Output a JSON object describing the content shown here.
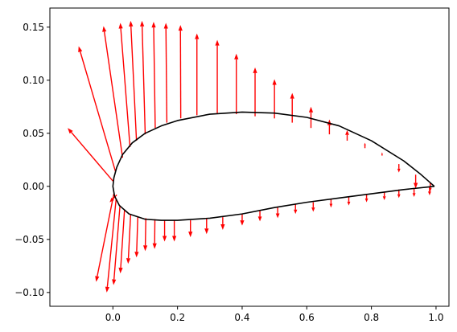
{
  "chart_data": {
    "type": "quiver",
    "title": "",
    "xlabel": "",
    "ylabel": "",
    "xlim": [
      -0.195,
      1.04
    ],
    "ylim": [
      -0.113,
      0.168
    ],
    "grid": false,
    "legend": null,
    "x_ticks": [
      0.0,
      0.2,
      0.4,
      0.6,
      0.8,
      1.0
    ],
    "x_tick_labels": [
      "0.0",
      "0.2",
      "0.4",
      "0.6",
      "0.8",
      "1.0"
    ],
    "y_ticks": [
      -0.1,
      -0.05,
      0.0,
      0.05,
      0.1,
      0.15
    ],
    "y_tick_labels": [
      "−0.10",
      "−0.05",
      "0.00",
      "0.05",
      "0.10",
      "0.15"
    ],
    "colors": {
      "airfoil": "#000000",
      "arrows": "#ff0000",
      "axes": "#000000"
    },
    "airfoil_upper": [
      [
        0.995,
        0.0
      ],
      [
        0.95,
        0.012
      ],
      [
        0.9,
        0.024
      ],
      [
        0.8,
        0.043
      ],
      [
        0.7,
        0.057
      ],
      [
        0.6,
        0.065
      ],
      [
        0.5,
        0.069
      ],
      [
        0.4,
        0.07
      ],
      [
        0.3,
        0.068
      ],
      [
        0.2,
        0.062
      ],
      [
        0.15,
        0.057
      ],
      [
        0.1,
        0.05
      ],
      [
        0.06,
        0.041
      ],
      [
        0.03,
        0.03
      ],
      [
        0.012,
        0.018
      ],
      [
        0.003,
        0.008
      ],
      [
        0.0,
        0.0
      ]
    ],
    "airfoil_lower": [
      [
        0.0,
        0.0
      ],
      [
        0.005,
        -0.009
      ],
      [
        0.02,
        -0.018
      ],
      [
        0.05,
        -0.026
      ],
      [
        0.1,
        -0.031
      ],
      [
        0.15,
        -0.032
      ],
      [
        0.2,
        -0.032
      ],
      [
        0.3,
        -0.03
      ],
      [
        0.4,
        -0.026
      ],
      [
        0.5,
        -0.02
      ],
      [
        0.6,
        -0.015
      ],
      [
        0.7,
        -0.011
      ],
      [
        0.8,
        -0.007
      ],
      [
        0.9,
        -0.003
      ],
      [
        0.995,
        0.0
      ]
    ],
    "arrows_upper": [
      {
        "x": 0.0,
        "y": 0.005,
        "u": -0.14,
        "v": 0.05
      },
      {
        "x": 0.008,
        "y": 0.014,
        "u": -0.114,
        "v": 0.118
      },
      {
        "x": 0.03,
        "y": 0.027,
        "u": -0.059,
        "v": 0.124
      },
      {
        "x": 0.053,
        "y": 0.037,
        "u": -0.03,
        "v": 0.117
      },
      {
        "x": 0.073,
        "y": 0.043,
        "u": -0.018,
        "v": 0.113
      },
      {
        "x": 0.1,
        "y": 0.049,
        "u": -0.01,
        "v": 0.107
      },
      {
        "x": 0.131,
        "y": 0.055,
        "u": -0.005,
        "v": 0.1
      },
      {
        "x": 0.167,
        "y": 0.06,
        "u": -0.003,
        "v": 0.094
      },
      {
        "x": 0.21,
        "y": 0.064,
        "u": -0.001,
        "v": 0.088
      },
      {
        "x": 0.26,
        "y": 0.067,
        "u": 0.0,
        "v": 0.077
      },
      {
        "x": 0.323,
        "y": 0.069,
        "u": 0.0,
        "v": 0.069
      },
      {
        "x": 0.382,
        "y": 0.068,
        "u": 0.0,
        "v": 0.057
      },
      {
        "x": 0.44,
        "y": 0.066,
        "u": 0.0,
        "v": 0.046
      },
      {
        "x": 0.5,
        "y": 0.064,
        "u": 0.0,
        "v": 0.037
      },
      {
        "x": 0.555,
        "y": 0.06,
        "u": 0.0,
        "v": 0.028
      },
      {
        "x": 0.613,
        "y": 0.055,
        "u": 0.0,
        "v": 0.02
      },
      {
        "x": 0.67,
        "y": 0.049,
        "u": 0.0,
        "v": 0.014
      },
      {
        "x": 0.725,
        "y": 0.043,
        "u": 0.0,
        "v": 0.01
      },
      {
        "x": 0.78,
        "y": 0.036,
        "u": 0.0,
        "v": 0.005
      },
      {
        "x": 0.833,
        "y": 0.029,
        "u": 0.0,
        "v": 0.003
      },
      {
        "x": 0.885,
        "y": 0.021,
        "u": 0.0,
        "v": -0.008
      },
      {
        "x": 0.937,
        "y": 0.011,
        "u": 0.0,
        "v": -0.013
      },
      {
        "x": 0.982,
        "y": 0.003,
        "u": 0.0,
        "v": -0.008
      }
    ],
    "arrows_lower": [
      {
        "x": 0.012,
        "y": -0.008,
        "u": -0.022,
        "v": -0.007
      },
      {
        "x": 0.003,
        "y": -0.007,
        "u": -0.055,
        "v": -0.083
      },
      {
        "x": 0.01,
        "y": -0.012,
        "u": -0.029,
        "v": -0.088
      },
      {
        "x": 0.022,
        "y": -0.018,
        "u": -0.02,
        "v": -0.075
      },
      {
        "x": 0.036,
        "y": -0.022,
        "u": -0.013,
        "v": -0.06
      },
      {
        "x": 0.055,
        "y": -0.026,
        "u": -0.008,
        "v": -0.047
      },
      {
        "x": 0.077,
        "y": -0.029,
        "u": -0.004,
        "v": -0.038
      },
      {
        "x": 0.102,
        "y": -0.03,
        "u": -0.002,
        "v": -0.031
      },
      {
        "x": 0.13,
        "y": -0.031,
        "u": -0.001,
        "v": -0.028
      },
      {
        "x": 0.16,
        "y": -0.032,
        "u": 0.0,
        "v": -0.02
      },
      {
        "x": 0.19,
        "y": -0.032,
        "u": 0.0,
        "v": -0.02
      },
      {
        "x": 0.24,
        "y": -0.032,
        "u": 0.0,
        "v": -0.016
      },
      {
        "x": 0.29,
        "y": -0.03,
        "u": 0.0,
        "v": -0.015
      },
      {
        "x": 0.34,
        "y": -0.029,
        "u": 0.0,
        "v": -0.012
      },
      {
        "x": 0.4,
        "y": -0.026,
        "u": 0.0,
        "v": -0.011
      },
      {
        "x": 0.455,
        "y": -0.023,
        "u": 0.0,
        "v": -0.01
      },
      {
        "x": 0.51,
        "y": -0.02,
        "u": 0.0,
        "v": -0.01
      },
      {
        "x": 0.565,
        "y": -0.017,
        "u": 0.0,
        "v": -0.009
      },
      {
        "x": 0.62,
        "y": -0.015,
        "u": 0.0,
        "v": -0.009
      },
      {
        "x": 0.675,
        "y": -0.012,
        "u": 0.0,
        "v": -0.008
      },
      {
        "x": 0.73,
        "y": -0.01,
        "u": 0.0,
        "v": -0.008
      },
      {
        "x": 0.785,
        "y": -0.007,
        "u": 0.0,
        "v": -0.008
      },
      {
        "x": 0.84,
        "y": -0.005,
        "u": 0.0,
        "v": -0.008
      },
      {
        "x": 0.885,
        "y": -0.003,
        "u": 0.0,
        "v": -0.008
      },
      {
        "x": 0.932,
        "y": -0.002,
        "u": 0.0,
        "v": -0.008
      },
      {
        "x": 0.98,
        "y": -0.0005,
        "u": 0.0,
        "v": -0.008
      }
    ]
  }
}
